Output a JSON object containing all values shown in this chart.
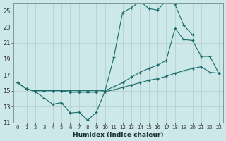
{
  "title": "",
  "xlabel": "Humidex (Indice chaleur)",
  "ylabel": "",
  "background_color": "#cce8e8",
  "grid_color": "#b8d0d0",
  "line_color": "#1a6b6b",
  "xlim": [
    -0.5,
    23.5
  ],
  "ylim": [
    11,
    26
  ],
  "yticks": [
    11,
    13,
    15,
    17,
    19,
    21,
    23,
    25
  ],
  "xticks": [
    0,
    1,
    2,
    3,
    4,
    5,
    6,
    7,
    8,
    9,
    10,
    11,
    12,
    13,
    14,
    15,
    16,
    17,
    18,
    19,
    20,
    21,
    22,
    23
  ],
  "line1_x": [
    0,
    1,
    2,
    3,
    4,
    5,
    6,
    7,
    8,
    9,
    10,
    11,
    12,
    13,
    14,
    15,
    16,
    17,
    18,
    19,
    20,
    21
  ],
  "line1_y": [
    16.0,
    15.2,
    14.9,
    14.1,
    13.3,
    13.5,
    12.2,
    12.3,
    11.3,
    12.3,
    15.0,
    19.2,
    24.8,
    25.4,
    26.2,
    25.3,
    25.1,
    26.3,
    25.8,
    23.2,
    22.0,
    null
  ],
  "line2_x": [
    0,
    1,
    2,
    3,
    4,
    5,
    6,
    7,
    8,
    9,
    10,
    11,
    12,
    13,
    14,
    15,
    16,
    17,
    18,
    19,
    20,
    21,
    22,
    23
  ],
  "line2_y": [
    16.0,
    15.2,
    15.0,
    15.0,
    15.0,
    15.0,
    15.0,
    15.0,
    15.0,
    15.0,
    15.0,
    15.5,
    16.0,
    16.7,
    17.3,
    17.8,
    18.2,
    18.8,
    22.8,
    21.4,
    21.3,
    19.3,
    19.3,
    17.2
  ],
  "line3_x": [
    0,
    1,
    2,
    3,
    4,
    5,
    6,
    7,
    8,
    9,
    10,
    11,
    12,
    13,
    14,
    15,
    16,
    17,
    18,
    19,
    20,
    21,
    22,
    23
  ],
  "line3_y": [
    16.0,
    15.2,
    15.0,
    15.0,
    15.0,
    15.0,
    14.8,
    14.8,
    14.8,
    14.8,
    14.9,
    15.1,
    15.4,
    15.7,
    16.0,
    16.3,
    16.5,
    16.8,
    17.2,
    17.5,
    17.8,
    18.0,
    17.3,
    17.2
  ]
}
